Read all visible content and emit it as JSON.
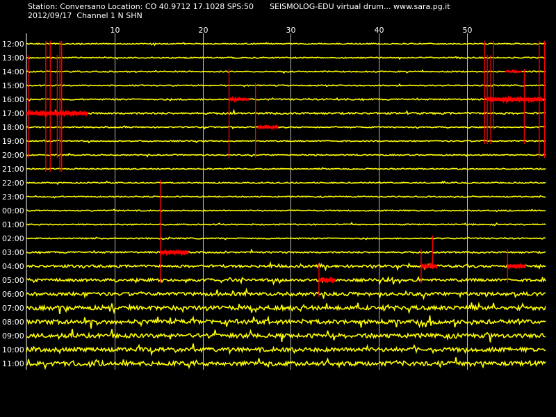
{
  "header": {
    "station_line": "Station: Conversano Location: CO 40.9712 17.1028 SPS:50",
    "date_line": "2012/09/17  Channel 1 N SHN",
    "app_line": "SEISMOLOG-EDU virtual drum... www.sara.pg.it"
  },
  "colors": {
    "background": "#000000",
    "trace": "#ffff00",
    "event": "#ff0000",
    "grid": "#ffffff",
    "text": "#ffffff"
  },
  "chart_data": {
    "type": "line",
    "title": "",
    "xlabel": "",
    "ylabel": "",
    "x_axis": {
      "min": 0,
      "max": 59,
      "ticks": [
        10,
        20,
        30,
        40,
        50
      ],
      "unit": "minute"
    },
    "grid": "vertical-only",
    "rows": [
      {
        "label": "12:00",
        "noise": 0.5
      },
      {
        "label": "13:00",
        "noise": 0.5
      },
      {
        "label": "14:00",
        "noise": 0.5
      },
      {
        "label": "15:00",
        "noise": 0.5
      },
      {
        "label": "16:00",
        "noise": 0.6
      },
      {
        "label": "17:00",
        "noise": 0.8
      },
      {
        "label": "18:00",
        "noise": 0.5
      },
      {
        "label": "19:00",
        "noise": 0.5
      },
      {
        "label": "20:00",
        "noise": 0.5
      },
      {
        "label": "21:00",
        "noise": 0.5
      },
      {
        "label": "22:00",
        "noise": 0.5
      },
      {
        "label": "23:00",
        "noise": 0.5
      },
      {
        "label": "00:00",
        "noise": 0.5
      },
      {
        "label": "01:00",
        "noise": 0.5
      },
      {
        "label": "02:00",
        "noise": 0.5
      },
      {
        "label": "03:00",
        "noise": 0.7
      },
      {
        "label": "04:00",
        "noise": 1.1
      },
      {
        "label": "05:00",
        "noise": 1.2
      },
      {
        "label": "06:00",
        "noise": 1.5
      },
      {
        "label": "07:00",
        "noise": 1.8
      },
      {
        "label": "08:00",
        "noise": 1.8
      },
      {
        "label": "09:00",
        "noise": 1.8
      },
      {
        "label": "10:00",
        "noise": 1.8
      },
      {
        "label": "11:00",
        "noise": 1.9
      }
    ],
    "event_segments": [
      {
        "row": 5,
        "start": 0.0,
        "end": 7.0,
        "thickness": 8
      },
      {
        "row": 4,
        "start": 23.0,
        "end": 25.3,
        "thickness": 6
      },
      {
        "row": 6,
        "start": 26.3,
        "end": 28.6,
        "thickness": 6
      },
      {
        "row": 4,
        "start": 52.2,
        "end": 58.6,
        "thickness": 8
      },
      {
        "row": 2,
        "start": 54.3,
        "end": 56.2,
        "thickness": 4
      },
      {
        "row": 15,
        "start": 15.2,
        "end": 18.4,
        "thickness": 8
      },
      {
        "row": 17,
        "start": 33.2,
        "end": 35.1,
        "thickness": 8
      },
      {
        "row": 16,
        "start": 44.8,
        "end": 46.6,
        "thickness": 8
      },
      {
        "row": 16,
        "start": 54.6,
        "end": 56.7,
        "thickness": 8
      }
    ],
    "event_spikes": [
      {
        "x": 0.2,
        "from_row": 1,
        "to_row": 8
      },
      {
        "x": 2.2,
        "from_row": 0,
        "to_row": 9
      },
      {
        "x": 2.7,
        "from_row": 0,
        "to_row": 9
      },
      {
        "x": 3.5,
        "from_row": 1,
        "to_row": 8
      },
      {
        "x": 3.8,
        "from_row": 0,
        "to_row": 9
      },
      {
        "x": 4.0,
        "from_row": 0,
        "to_row": 9
      },
      {
        "x": 23.0,
        "from_row": 2,
        "to_row": 8
      },
      {
        "x": 26.0,
        "from_row": 3,
        "to_row": 8
      },
      {
        "x": 52.0,
        "from_row": 0,
        "to_row": 7
      },
      {
        "x": 52.3,
        "from_row": 1,
        "to_row": 7
      },
      {
        "x": 52.7,
        "from_row": 1,
        "to_row": 7
      },
      {
        "x": 53.0,
        "from_row": 0,
        "to_row": 6
      },
      {
        "x": 56.5,
        "from_row": 2,
        "to_row": 7
      },
      {
        "x": 58.2,
        "from_row": 0,
        "to_row": 8
      },
      {
        "x": 58.8,
        "from_row": 0,
        "to_row": 8
      },
      {
        "x": 15.2,
        "from_row": 10,
        "to_row": 17
      },
      {
        "x": 33.2,
        "from_row": 16,
        "to_row": 18
      },
      {
        "x": 44.8,
        "from_row": 15,
        "to_row": 17
      },
      {
        "x": 46.1,
        "from_row": 14,
        "to_row": 16
      },
      {
        "x": 54.6,
        "from_row": 15,
        "to_row": 17
      }
    ]
  }
}
